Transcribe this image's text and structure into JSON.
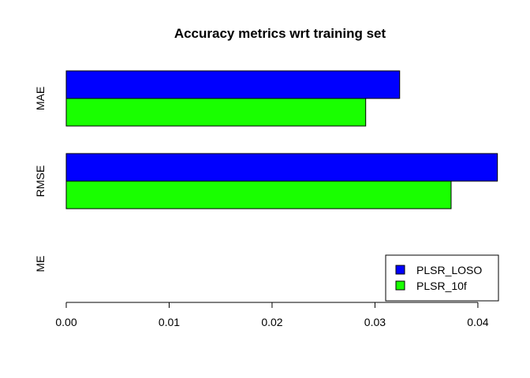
{
  "chart_data": {
    "type": "bar",
    "orientation": "horizontal",
    "title": "Accuracy metrics wrt training set",
    "xlabel": "",
    "ylabel": "",
    "categories": [
      "ME",
      "RMSE",
      "MAE"
    ],
    "series": [
      {
        "name": "PLSR_LOSO",
        "color": "#0000ff",
        "values": [
          0.0,
          0.0419,
          0.0324
        ]
      },
      {
        "name": "PLSR_10f",
        "color": "#19ff00",
        "values": [
          0.0,
          0.0374,
          0.0291
        ]
      }
    ],
    "xlim": [
      0,
      0.042
    ],
    "xticks": [
      "0.00",
      "0.01",
      "0.02",
      "0.03",
      "0.04"
    ],
    "grid": false,
    "legend_position": "bottom-right"
  }
}
